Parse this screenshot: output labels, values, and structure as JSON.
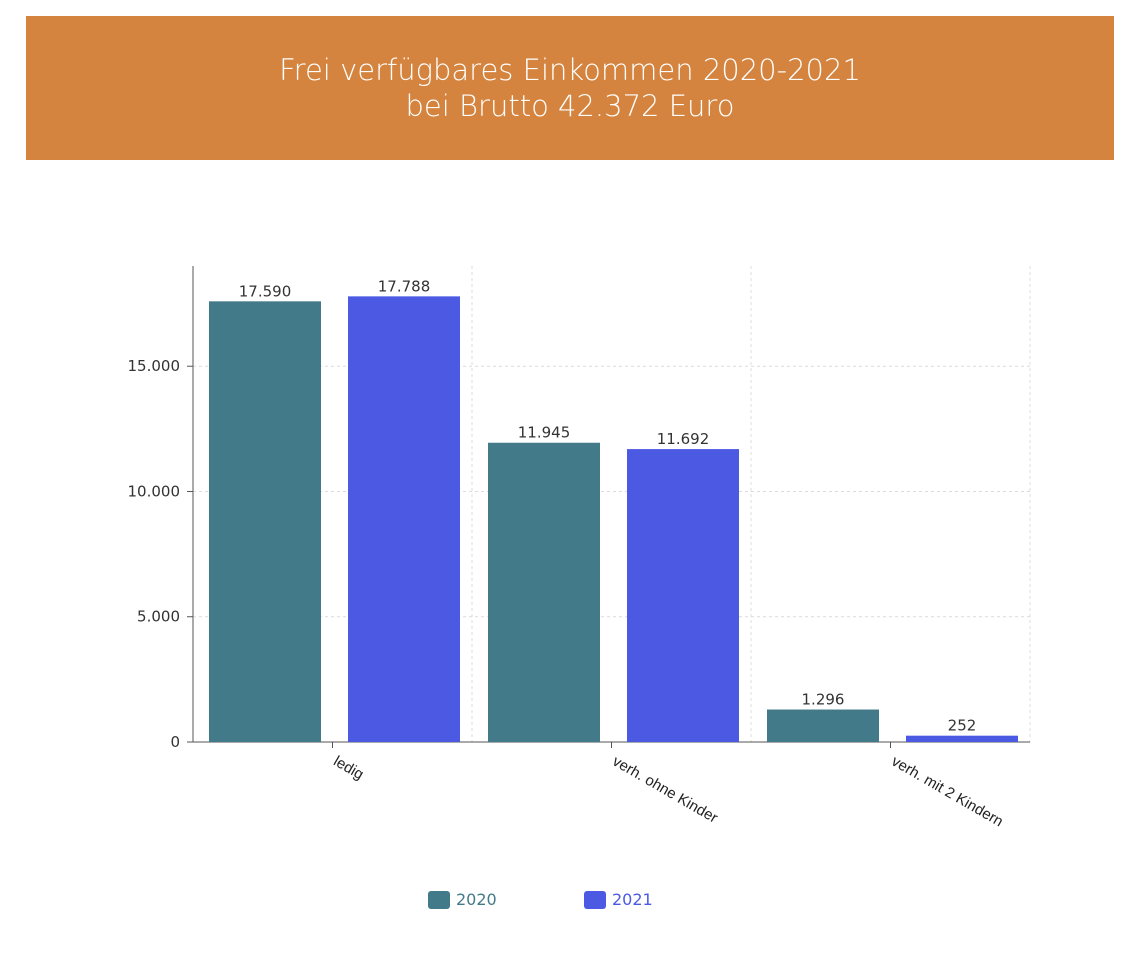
{
  "header": {
    "title_line1": "Frei verfügbares Einkommen 2020-2021",
    "title_line2": "bei Brutto 42.372 Euro",
    "background": "#d4843f"
  },
  "chart_data": {
    "type": "bar",
    "categories": [
      "ledig",
      "verh. ohne Kinder",
      "verh. mit 2 Kindern"
    ],
    "series": [
      {
        "name": "2020",
        "color": "#437a8a",
        "values": [
          17590,
          11945,
          1296
        ],
        "labels": [
          "17.590",
          "11.945",
          "1.296"
        ]
      },
      {
        "name": "2021",
        "color": "#4b59e3",
        "values": [
          17788,
          11692,
          252
        ],
        "labels": [
          "17.788",
          "11.692",
          "252"
        ]
      }
    ],
    "yticks": [
      0,
      5000,
      10000,
      15000
    ],
    "ytick_labels": [
      "0",
      "5.000",
      "10.000",
      "15.000"
    ],
    "ylim": [
      0,
      19000
    ],
    "grid": true,
    "legend_position": "bottom-center"
  }
}
